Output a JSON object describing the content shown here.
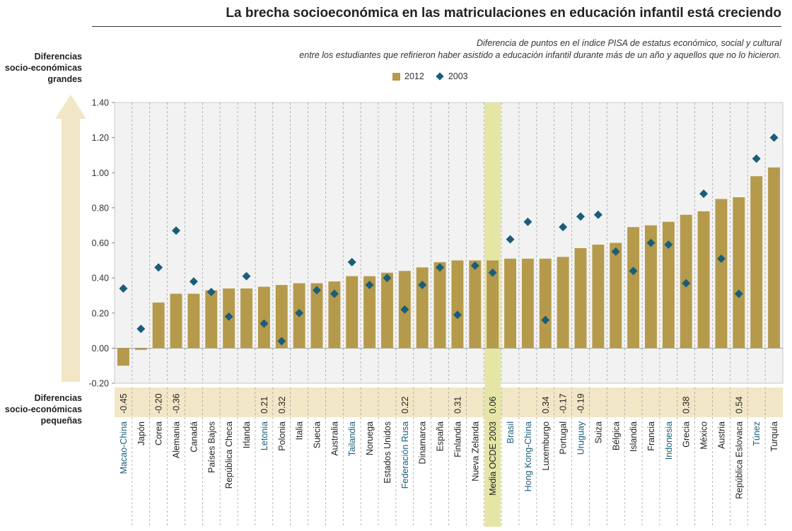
{
  "title": "La brecha socioeconómica en las matriculaciones en educación infantil está creciendo",
  "subtitle_line1": "Diferencia de puntos en el índice PISA de estatus económico, social y cultural",
  "subtitle_line2": "entre los estudiantes que refirieron haber asistido a educación infantil durante más de un año y aquellos que no lo hicieron.",
  "side_labels": {
    "top": [
      "Diferencias",
      "socio-económicas",
      "grandes"
    ],
    "bottom": [
      "Diferencias",
      "socio-económicas",
      "pequeñas"
    ]
  },
  "colors": {
    "bar": "#b59a4b",
    "diamond": "#1a5d7a",
    "highlight_band": "#e5e6a6",
    "difference_band": "#f1e6c6",
    "arrow": "#f1e6c6",
    "plot_background": "#f2f2f2",
    "highlighted_label": "#1a5d7a"
  },
  "chart_data": {
    "type": "bar",
    "legend": [
      "2012",
      "2003"
    ],
    "legend_position": "top-center",
    "ylim": [
      -0.2,
      1.4
    ],
    "yticks": [
      "-0.20",
      "0.00",
      "0.20",
      "0.40",
      "0.60",
      "0.80",
      "1.00",
      "1.20",
      "1.40"
    ],
    "grid": "vertical-dashed",
    "categories": [
      "Macao-China",
      "Japón",
      "Corea",
      "Alemania",
      "Canadá",
      "Países Bajos",
      "República Checa",
      "Irlanda",
      "Letonia",
      "Polonia",
      "Italia",
      "Suecia",
      "Australia",
      "Tailandia",
      "Noruega",
      "Estados Unidos",
      "Federación Rusa",
      "Dinamarca",
      "España",
      "Finlandia",
      "Nueva Zelanda",
      "Media OCDE 2003",
      "Brasil",
      "Hong Kong-China",
      "Luxemburgo",
      "Portugal",
      "Uruguay",
      "Suiza",
      "Bélgica",
      "Islandia",
      "Francia",
      "Indonesia",
      "Grecia",
      "México",
      "Austria",
      "República Eslovaca",
      "Túnez",
      "Turquía"
    ],
    "highlighted_categories": [
      "Macao-China",
      "Letonia",
      "Tailandia",
      "Federación Rusa",
      "Brasil",
      "Hong Kong-China",
      "Uruguay",
      "Indonesia",
      "Túnez"
    ],
    "highlighted_band_category": "Media OCDE 2003",
    "series": [
      {
        "name": "2012",
        "mark": "bar",
        "values": [
          -0.1,
          -0.01,
          0.26,
          0.31,
          0.31,
          0.33,
          0.34,
          0.34,
          0.35,
          0.36,
          0.37,
          0.37,
          0.38,
          0.41,
          0.41,
          0.43,
          0.44,
          0.46,
          0.49,
          0.5,
          0.5,
          0.5,
          0.51,
          0.51,
          0.51,
          0.52,
          0.57,
          0.59,
          0.6,
          0.69,
          0.7,
          0.72,
          0.76,
          0.78,
          0.85,
          0.86,
          0.98,
          1.03
        ]
      },
      {
        "name": "2003",
        "mark": "diamond",
        "values": [
          0.34,
          0.11,
          0.46,
          0.67,
          0.38,
          0.32,
          0.18,
          0.41,
          0.14,
          0.04,
          0.2,
          0.33,
          0.31,
          0.49,
          0.36,
          0.4,
          0.22,
          0.36,
          0.46,
          0.19,
          0.47,
          0.43,
          0.62,
          0.72,
          0.16,
          0.69,
          0.75,
          0.76,
          0.55,
          0.44,
          0.6,
          0.59,
          0.37,
          0.88,
          0.51,
          0.31,
          1.08,
          1.2
        ]
      }
    ],
    "differences": [
      "-0.45",
      "",
      "-0.20",
      "-0.36",
      "",
      "",
      "",
      "",
      "0.21",
      "0.32",
      "",
      "",
      "",
      "",
      "",
      "",
      "0.22",
      "",
      "",
      "0.31",
      "",
      "0.06",
      "",
      "",
      "0.34",
      "-0.17",
      "-0.19",
      "",
      "",
      "",
      "",
      "",
      "0.38",
      "",
      "",
      "0.54",
      "",
      ""
    ]
  }
}
